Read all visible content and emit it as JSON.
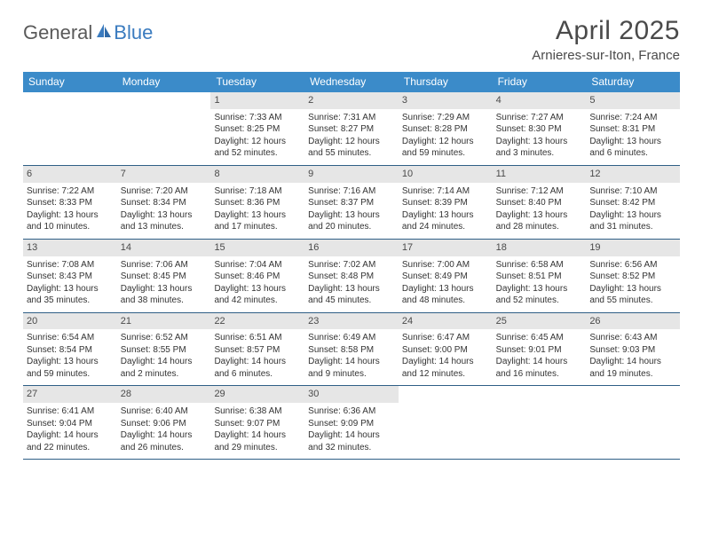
{
  "logo": {
    "part1": "General",
    "part2": "Blue"
  },
  "title": "April 2025",
  "location": "Arnieres-sur-Iton, France",
  "colors": {
    "header_bg": "#3b8bc9",
    "row_divider": "#2f5f86",
    "daynum_bg": "#e6e6e6",
    "text": "#333333",
    "logo_gray": "#5a5a5a",
    "logo_blue": "#3a7bbf"
  },
  "dow": [
    "Sunday",
    "Monday",
    "Tuesday",
    "Wednesday",
    "Thursday",
    "Friday",
    "Saturday"
  ],
  "weeks": [
    [
      {
        "empty": true
      },
      {
        "empty": true
      },
      {
        "n": "1",
        "sr": "7:33 AM",
        "ss": "8:25 PM",
        "dl": "12 hours and 52 minutes."
      },
      {
        "n": "2",
        "sr": "7:31 AM",
        "ss": "8:27 PM",
        "dl": "12 hours and 55 minutes."
      },
      {
        "n": "3",
        "sr": "7:29 AM",
        "ss": "8:28 PM",
        "dl": "12 hours and 59 minutes."
      },
      {
        "n": "4",
        "sr": "7:27 AM",
        "ss": "8:30 PM",
        "dl": "13 hours and 3 minutes."
      },
      {
        "n": "5",
        "sr": "7:24 AM",
        "ss": "8:31 PM",
        "dl": "13 hours and 6 minutes."
      }
    ],
    [
      {
        "n": "6",
        "sr": "7:22 AM",
        "ss": "8:33 PM",
        "dl": "13 hours and 10 minutes."
      },
      {
        "n": "7",
        "sr": "7:20 AM",
        "ss": "8:34 PM",
        "dl": "13 hours and 13 minutes."
      },
      {
        "n": "8",
        "sr": "7:18 AM",
        "ss": "8:36 PM",
        "dl": "13 hours and 17 minutes."
      },
      {
        "n": "9",
        "sr": "7:16 AM",
        "ss": "8:37 PM",
        "dl": "13 hours and 20 minutes."
      },
      {
        "n": "10",
        "sr": "7:14 AM",
        "ss": "8:39 PM",
        "dl": "13 hours and 24 minutes."
      },
      {
        "n": "11",
        "sr": "7:12 AM",
        "ss": "8:40 PM",
        "dl": "13 hours and 28 minutes."
      },
      {
        "n": "12",
        "sr": "7:10 AM",
        "ss": "8:42 PM",
        "dl": "13 hours and 31 minutes."
      }
    ],
    [
      {
        "n": "13",
        "sr": "7:08 AM",
        "ss": "8:43 PM",
        "dl": "13 hours and 35 minutes."
      },
      {
        "n": "14",
        "sr": "7:06 AM",
        "ss": "8:45 PM",
        "dl": "13 hours and 38 minutes."
      },
      {
        "n": "15",
        "sr": "7:04 AM",
        "ss": "8:46 PM",
        "dl": "13 hours and 42 minutes."
      },
      {
        "n": "16",
        "sr": "7:02 AM",
        "ss": "8:48 PM",
        "dl": "13 hours and 45 minutes."
      },
      {
        "n": "17",
        "sr": "7:00 AM",
        "ss": "8:49 PM",
        "dl": "13 hours and 48 minutes."
      },
      {
        "n": "18",
        "sr": "6:58 AM",
        "ss": "8:51 PM",
        "dl": "13 hours and 52 minutes."
      },
      {
        "n": "19",
        "sr": "6:56 AM",
        "ss": "8:52 PM",
        "dl": "13 hours and 55 minutes."
      }
    ],
    [
      {
        "n": "20",
        "sr": "6:54 AM",
        "ss": "8:54 PM",
        "dl": "13 hours and 59 minutes."
      },
      {
        "n": "21",
        "sr": "6:52 AM",
        "ss": "8:55 PM",
        "dl": "14 hours and 2 minutes."
      },
      {
        "n": "22",
        "sr": "6:51 AM",
        "ss": "8:57 PM",
        "dl": "14 hours and 6 minutes."
      },
      {
        "n": "23",
        "sr": "6:49 AM",
        "ss": "8:58 PM",
        "dl": "14 hours and 9 minutes."
      },
      {
        "n": "24",
        "sr": "6:47 AM",
        "ss": "9:00 PM",
        "dl": "14 hours and 12 minutes."
      },
      {
        "n": "25",
        "sr": "6:45 AM",
        "ss": "9:01 PM",
        "dl": "14 hours and 16 minutes."
      },
      {
        "n": "26",
        "sr": "6:43 AM",
        "ss": "9:03 PM",
        "dl": "14 hours and 19 minutes."
      }
    ],
    [
      {
        "n": "27",
        "sr": "6:41 AM",
        "ss": "9:04 PM",
        "dl": "14 hours and 22 minutes."
      },
      {
        "n": "28",
        "sr": "6:40 AM",
        "ss": "9:06 PM",
        "dl": "14 hours and 26 minutes."
      },
      {
        "n": "29",
        "sr": "6:38 AM",
        "ss": "9:07 PM",
        "dl": "14 hours and 29 minutes."
      },
      {
        "n": "30",
        "sr": "6:36 AM",
        "ss": "9:09 PM",
        "dl": "14 hours and 32 minutes."
      },
      {
        "empty": true
      },
      {
        "empty": true
      },
      {
        "empty": true
      }
    ]
  ],
  "labels": {
    "sunrise": "Sunrise: ",
    "sunset": "Sunset: ",
    "daylight": "Daylight: "
  }
}
